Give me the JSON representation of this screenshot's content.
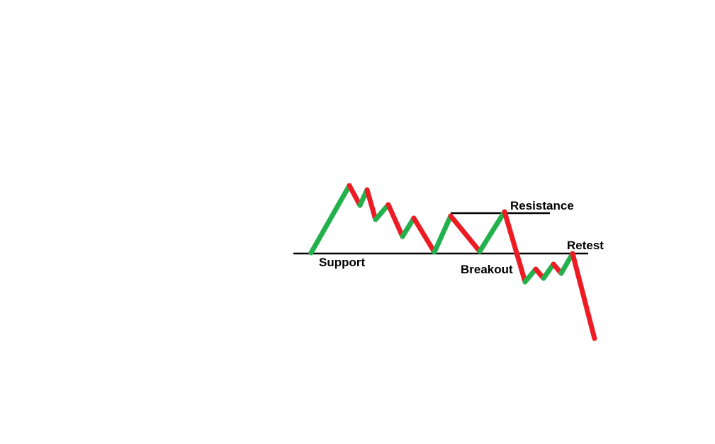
{
  "labels": {
    "support": "Support",
    "resistance": "Resistance",
    "breakout": "Breakout",
    "retest": "Retest"
  },
  "colors": {
    "up": "#22b14c",
    "down": "#ed1c24",
    "line": "#000000",
    "background": "#ffffff"
  }
}
